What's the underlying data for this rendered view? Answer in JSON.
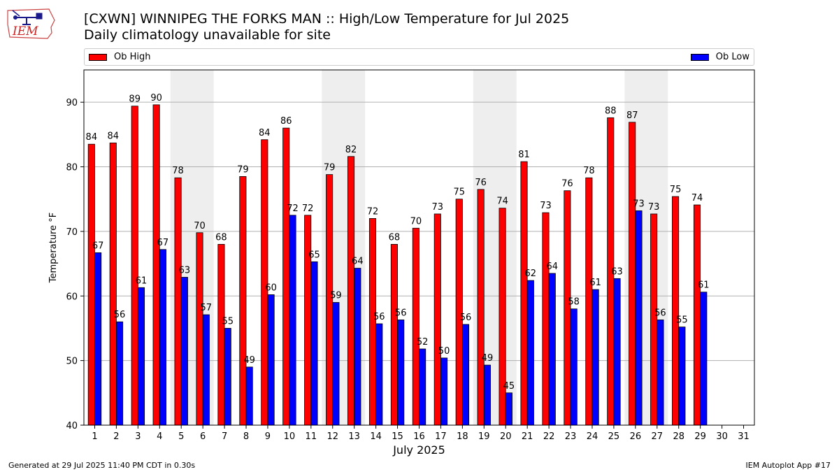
{
  "logo": {
    "text": "IEM"
  },
  "title": "[CXWN] WINNIPEG THE FORKS  MAN :: High/Low Temperature for Jul 2025",
  "subtitle": "Daily climatology unavailable for site",
  "footer": {
    "generated": "Generated at 29 Jul 2025 11:40 PM CDT in 0.30s",
    "app": "IEM Autoplot App #17"
  },
  "colors": {
    "high": "#ff0000",
    "low": "#0000ff",
    "weekend_shade": "#eeeeee",
    "grid": "#b0b0b0"
  },
  "chart_data": {
    "type": "bar",
    "xlabel": "July 2025",
    "ylabel": "Temperature °F",
    "ylim": [
      40,
      95
    ],
    "yticks": [
      40,
      50,
      60,
      70,
      80,
      90
    ],
    "grid": "horizontal",
    "legend_placement": "top, above plot",
    "categories": [
      "1",
      "2",
      "3",
      "4",
      "5",
      "6",
      "7",
      "8",
      "9",
      "10",
      "11",
      "12",
      "13",
      "14",
      "15",
      "16",
      "17",
      "18",
      "19",
      "20",
      "21",
      "22",
      "23",
      "24",
      "25",
      "26",
      "27",
      "28",
      "29",
      "30",
      "31"
    ],
    "shaded_days": [
      [
        5,
        6
      ],
      [
        12,
        13
      ],
      [
        19,
        20
      ],
      [
        26,
        27
      ]
    ],
    "series": [
      {
        "name": "Ob High",
        "values": [
          83.5,
          83.7,
          89.4,
          89.6,
          78.3,
          69.8,
          68.0,
          78.5,
          84.2,
          86.0,
          72.5,
          78.8,
          81.6,
          72.0,
          68.0,
          70.5,
          72.7,
          75.0,
          76.5,
          73.6,
          80.8,
          72.9,
          76.3,
          78.3,
          87.6,
          86.9,
          72.7,
          75.4,
          74.1,
          null,
          null
        ],
        "labels": [
          "84",
          "84",
          "89",
          "90",
          "78",
          "70",
          "68",
          "79",
          "84",
          "86",
          "72",
          "79",
          "82",
          "72",
          "68",
          "70",
          "73",
          "75",
          "76",
          "74",
          "81",
          "73",
          "76",
          "78",
          "88",
          "87",
          "73",
          "75",
          "74",
          "",
          ""
        ]
      },
      {
        "name": "Ob Low",
        "values": [
          66.7,
          56.0,
          61.3,
          67.2,
          62.9,
          57.1,
          55.0,
          49.0,
          60.2,
          72.5,
          65.3,
          59.0,
          64.3,
          55.7,
          56.3,
          51.8,
          50.4,
          55.6,
          49.3,
          45.0,
          62.4,
          63.5,
          58.0,
          61.0,
          62.7,
          73.2,
          56.3,
          55.2,
          60.6,
          null,
          null
        ],
        "labels": [
          "67",
          "56",
          "61",
          "67",
          "63",
          "57",
          "55",
          "49",
          "60",
          "72",
          "65",
          "59",
          "64",
          "56",
          "56",
          "52",
          "50",
          "56",
          "49",
          "45",
          "62",
          "64",
          "58",
          "61",
          "63",
          "73",
          "56",
          "55",
          "61",
          "",
          ""
        ]
      }
    ]
  }
}
